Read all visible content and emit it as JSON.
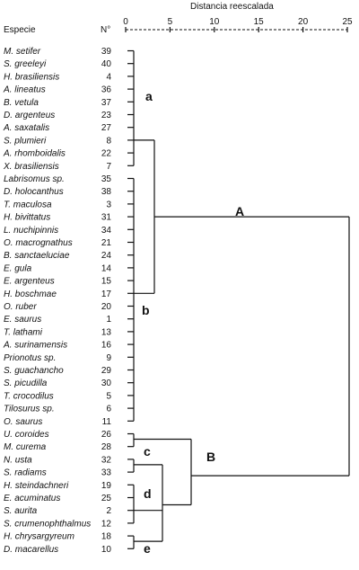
{
  "header": {
    "species_label": "Especie",
    "number_label": "N°",
    "axis_title": "Distancia reescalada"
  },
  "axis": {
    "ticks": [
      "0",
      "5",
      "10",
      "15",
      "20",
      "25"
    ],
    "range": [
      0,
      25
    ]
  },
  "species": [
    {
      "name": "M. setifer",
      "num": "39"
    },
    {
      "name": "S. greeleyi",
      "num": "40"
    },
    {
      "name": "H. brasiliensis",
      "num": "4"
    },
    {
      "name": "A. lineatus",
      "num": "36"
    },
    {
      "name": "B. vetula",
      "num": "37"
    },
    {
      "name": "D. argenteus",
      "num": "23"
    },
    {
      "name": "A. saxatalis",
      "num": "27"
    },
    {
      "name": "S. plumieri",
      "num": "8"
    },
    {
      "name": "A. rhomboidalis",
      "num": "22"
    },
    {
      "name": "X. brasiliensis",
      "num": "7"
    },
    {
      "name": "Labrisomus sp.",
      "num": "35"
    },
    {
      "name": "D. holocanthus",
      "num": "38"
    },
    {
      "name": "T. maculosa",
      "num": "3"
    },
    {
      "name": "H. bivittatus",
      "num": "31"
    },
    {
      "name": "L. nuchipinnis",
      "num": "34"
    },
    {
      "name": "O. macrognathus",
      "num": "21"
    },
    {
      "name": "B. sanctaeluciae",
      "num": "24"
    },
    {
      "name": "E. gula",
      "num": "14"
    },
    {
      "name": "E. argenteus",
      "num": "15"
    },
    {
      "name": "H. boschmae",
      "num": "17"
    },
    {
      "name": "O. ruber",
      "num": "20"
    },
    {
      "name": "E. saurus",
      "num": "1"
    },
    {
      "name": "T. lathami",
      "num": "13"
    },
    {
      "name": "A. surinamensis",
      "num": "16"
    },
    {
      "name": "Prionotus sp.",
      "num": "9"
    },
    {
      "name": "S. guachancho",
      "num": "29"
    },
    {
      "name": "S. picudilla",
      "num": "30"
    },
    {
      "name": "T. crocodilus",
      "num": "5"
    },
    {
      "name": "Tilosurus sp.",
      "num": "6"
    },
    {
      "name": "O. saurus",
      "num": "11"
    },
    {
      "name": "U. coroides",
      "num": "26"
    },
    {
      "name": "M. curema",
      "num": "28"
    },
    {
      "name": "N. usta",
      "num": "32"
    },
    {
      "name": "S. radiams",
      "num": "33"
    },
    {
      "name": "H. steindachneri",
      "num": "19"
    },
    {
      "name": "E. acuminatus",
      "num": "25"
    },
    {
      "name": "S. aurita",
      "num": "2"
    },
    {
      "name": "S. crumenophthalmus",
      "num": "12"
    },
    {
      "name": "H. chrysargyreum",
      "num": "18"
    },
    {
      "name": "D. macarellus",
      "num": "10"
    }
  ],
  "groups": {
    "a": "a",
    "b": "b",
    "A": "A",
    "B": "B",
    "c": "c",
    "d": "d",
    "e": "e"
  }
}
